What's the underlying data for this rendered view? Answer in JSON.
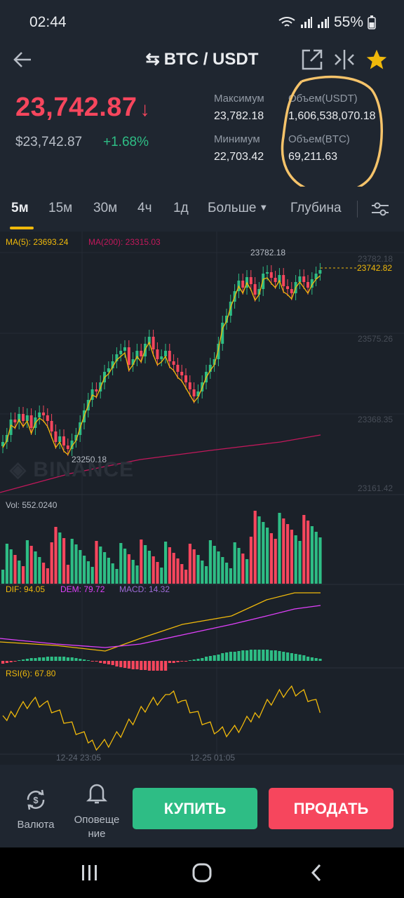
{
  "status": {
    "time": "02:44",
    "battery": "55%"
  },
  "header": {
    "title": "BTC / USDT"
  },
  "ticker": {
    "price": "23,742.87",
    "price_usd": "$23,742.87",
    "change": "+1.68%",
    "high_label": "Максимум",
    "high": "23,782.18",
    "low_label": "Минимум",
    "low": "22,703.42",
    "vol_usdt_label": "Объем(USDT)",
    "vol_usdt": "1,606,538,070.18",
    "vol_btc_label": "Объем(BTC)",
    "vol_btc": "69,211.63"
  },
  "tabs": [
    {
      "label": "5м",
      "active": true
    },
    {
      "label": "15м"
    },
    {
      "label": "30м"
    },
    {
      "label": "4ч"
    },
    {
      "label": "1д"
    },
    {
      "label": "Больше"
    },
    {
      "label": "Глубина"
    }
  ],
  "chart": {
    "ma5": "MA(5): 23693.24",
    "ma200": "MA(200): 23315.03",
    "high_marker": "23782.18",
    "low_marker": "23250.18",
    "price_tag": "23742.82",
    "axis": [
      "23782.18",
      "23575.26",
      "23368.35",
      "23161.42"
    ],
    "watermark": "BINANCE",
    "vol": "Vol: 552.0240",
    "dif": "DIF: 94.05",
    "dem": "DEM: 79.72",
    "macd": "MACD: 14.32",
    "rsi": "RSI(6): 67.80",
    "time_labels": [
      "12-24 23:05",
      "12-25 01:05"
    ]
  },
  "bottom": {
    "currency_label": "Валюта",
    "alert_label_1": "Оповеще",
    "alert_label_2": "ние",
    "buy": "КУПИТЬ",
    "sell": "ПРОДАТЬ"
  },
  "colors": {
    "up": "#2ebd85",
    "down": "#f6465d",
    "accent": "#f0b90b",
    "ma200": "#c2185b"
  }
}
